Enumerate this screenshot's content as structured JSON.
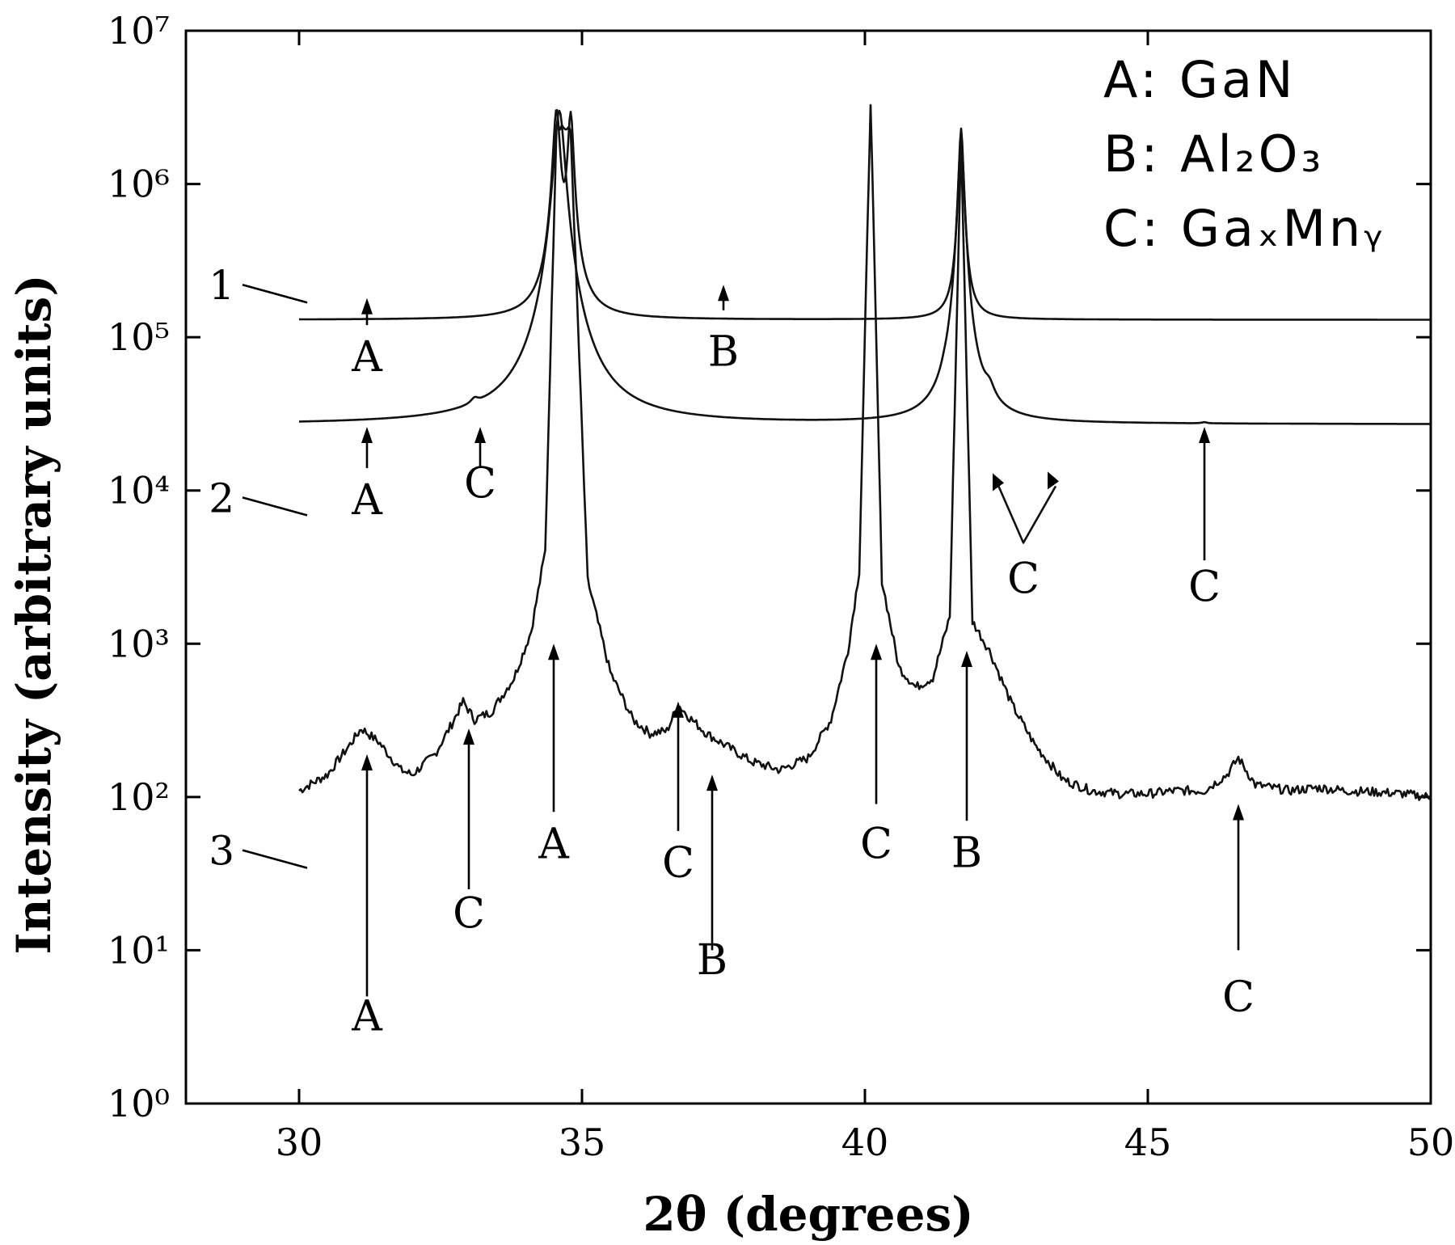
{
  "chart_data": {
    "type": "line",
    "xlabel": "2θ (degrees)",
    "ylabel": "Intensity (arbitrary units)",
    "xlim": [
      28,
      50
    ],
    "xticks": [
      30,
      35,
      40,
      45,
      50
    ],
    "ylim": [
      1,
      10000000
    ],
    "yscale": "log",
    "yticks": [
      {
        "value": 1,
        "label": "10⁰"
      },
      {
        "value": 10,
        "label": "10¹"
      },
      {
        "value": 100,
        "label": "10²"
      },
      {
        "value": 1000,
        "label": "10³"
      },
      {
        "value": 10000,
        "label": "10⁴"
      },
      {
        "value": 100000,
        "label": "10⁵"
      },
      {
        "value": 1000000,
        "label": "10⁶"
      },
      {
        "value": 10000000,
        "label": "10⁷"
      }
    ],
    "legend": {
      "position": "top-right",
      "entries": [
        {
          "key": "A",
          "base": "GaN",
          "text": "A: GaN"
        },
        {
          "key": "B",
          "base": "Al₂O₃",
          "text": "B: Al₂O₃"
        },
        {
          "key": "C",
          "base": "GaₓMnᵧ",
          "text": "C: GaₓMnᵧ"
        }
      ]
    },
    "series": [
      {
        "label": "1",
        "x_range": [
          30,
          50
        ],
        "baseline": 130000,
        "peaks": [
          {
            "x": 34.55,
            "y": 3000000,
            "width": 0.12
          },
          {
            "x": 34.8,
            "y": 2800000,
            "width": 0.1
          },
          {
            "x": 41.7,
            "y": 2300000,
            "width": 0.08
          }
        ]
      },
      {
        "label": "2",
        "x_range": [
          30,
          50
        ],
        "baseline": 27000,
        "peaks": [
          {
            "x": 33.1,
            "y": 30000,
            "width": 0.15
          },
          {
            "x": 34.6,
            "y": 3000000,
            "width": 0.18
          },
          {
            "x": 41.7,
            "y": 2000000,
            "width": 0.1
          },
          {
            "x": 41.4,
            "y": 29000,
            "width": 0.1
          },
          {
            "x": 42.2,
            "y": 35000,
            "width": 0.2
          },
          {
            "x": 46.0,
            "y": 27500,
            "width": 0.1
          }
        ]
      },
      {
        "label": "3",
        "x_range": [
          30,
          50
        ],
        "points": [
          [
            30.0,
            110
          ],
          [
            30.5,
            140
          ],
          [
            30.9,
            220
          ],
          [
            31.1,
            280
          ],
          [
            31.4,
            230
          ],
          [
            31.8,
            150
          ],
          [
            32.0,
            140
          ],
          [
            32.4,
            190
          ],
          [
            32.7,
            300
          ],
          [
            32.9,
            420
          ],
          [
            33.1,
            320
          ],
          [
            33.4,
            360
          ],
          [
            33.8,
            600
          ],
          [
            34.1,
            1200
          ],
          [
            34.35,
            4000
          ],
          [
            34.55,
            2500000
          ],
          [
            34.8,
            2200000
          ],
          [
            35.1,
            2600
          ],
          [
            35.5,
            650
          ],
          [
            35.9,
            320
          ],
          [
            36.2,
            260
          ],
          [
            36.5,
            270
          ],
          [
            36.7,
            400
          ],
          [
            36.9,
            330
          ],
          [
            37.2,
            260
          ],
          [
            37.6,
            210
          ],
          [
            38.0,
            170
          ],
          [
            38.5,
            150
          ],
          [
            39.0,
            180
          ],
          [
            39.4,
            320
          ],
          [
            39.7,
            900
          ],
          [
            39.9,
            3000
          ],
          [
            40.1,
            3500000
          ],
          [
            40.3,
            2600
          ],
          [
            40.6,
            700
          ],
          [
            40.9,
            520
          ],
          [
            41.2,
            600
          ],
          [
            41.5,
            1500
          ],
          [
            41.7,
            2000000
          ],
          [
            41.9,
            1400
          ],
          [
            42.2,
            900
          ],
          [
            42.6,
            400
          ],
          [
            43.0,
            220
          ],
          [
            43.5,
            130
          ],
          [
            44.0,
            110
          ],
          [
            44.5,
            105
          ],
          [
            45.0,
            105
          ],
          [
            45.5,
            110
          ],
          [
            46.0,
            110
          ],
          [
            46.4,
            140
          ],
          [
            46.6,
            180
          ],
          [
            46.9,
            120
          ],
          [
            47.5,
            110
          ],
          [
            48.0,
            115
          ],
          [
            48.5,
            110
          ],
          [
            49.0,
            108
          ],
          [
            49.5,
            105
          ],
          [
            50.0,
            100
          ]
        ]
      }
    ],
    "annotations": [
      {
        "label": "A",
        "x": 31.2,
        "tip": 180000,
        "tail": 120000,
        "text_at": 60000
      },
      {
        "label": "B",
        "x": 37.5,
        "tip": 220000,
        "tail": 150000,
        "text_at": 65000
      },
      {
        "label": "A",
        "x": 31.2,
        "tip": 26000,
        "tail": 14000,
        "text_at": 7000
      },
      {
        "label": "C",
        "x": 33.2,
        "tip": 26000,
        "tail": 14000,
        "text_at": 9000
      },
      {
        "label": "C",
        "x": 46.0,
        "tip": 26000,
        "tail": 3500,
        "text_at": 1900
      },
      {
        "label": "A",
        "x": 31.2,
        "tip": 190,
        "tail": 5,
        "text_at": 3
      },
      {
        "label": "C",
        "x": 33.0,
        "tip": 280,
        "tail": 25,
        "text_at": 14
      },
      {
        "label": "A",
        "x": 34.5,
        "tip": 1000,
        "tail": 80,
        "text_at": 40
      },
      {
        "label": "C",
        "x": 36.7,
        "tip": 420,
        "tail": 60,
        "text_at": 30
      },
      {
        "label": "B",
        "x": 37.3,
        "tip": 140,
        "tail": 10,
        "text_at": 7
      },
      {
        "label": "C",
        "x": 40.2,
        "tip": 1000,
        "tail": 90,
        "text_at": 40
      },
      {
        "label": "B",
        "x": 41.8,
        "tip": 900,
        "tail": 70,
        "text_at": 35
      },
      {
        "label": "C",
        "x": 46.6,
        "tip": 90,
        "tail": 10,
        "text_at": 4
      }
    ],
    "c_arrow_v": {
      "label": "C",
      "x": 42.8,
      "y_label": 2200
    },
    "series_labels": [
      {
        "label": "1",
        "x": 29.0,
        "y": 220000
      },
      {
        "label": "2",
        "x": 29.0,
        "y": 9000
      },
      {
        "label": "3",
        "x": 29.0,
        "y": 45
      }
    ]
  }
}
